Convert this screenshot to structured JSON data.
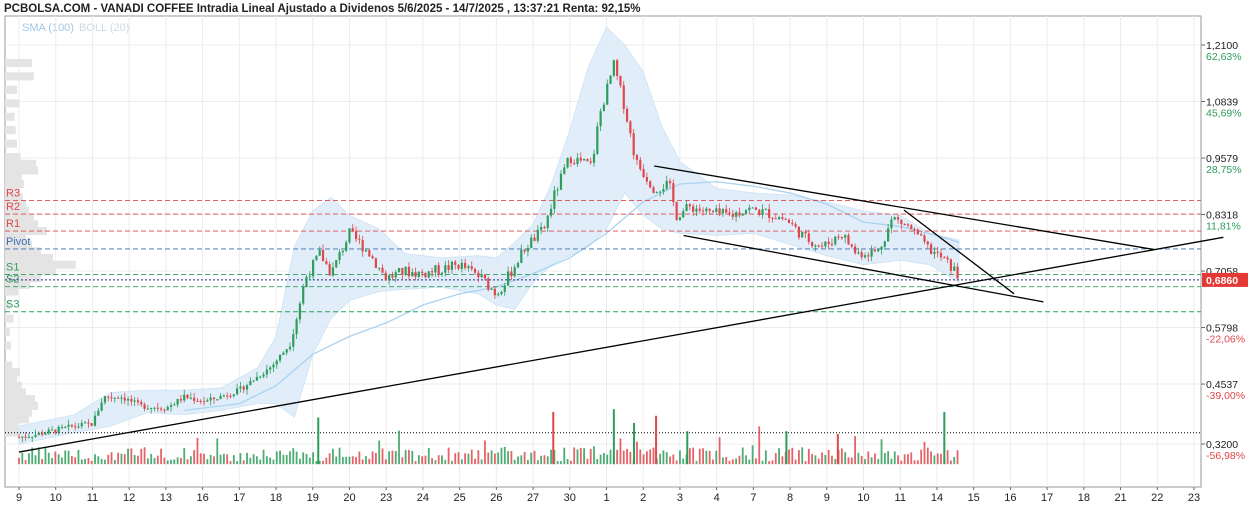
{
  "title": "PCBOLSA.COM - VANADI COFFEE Intradia Lineal Ajustado a Dividenos 5/6/2025 - 14/7/2025 , 13:37:21 Renta: 92,15%",
  "legend": {
    "sma": "SMA (100)",
    "boll": "BOLL (20)"
  },
  "colors": {
    "up": "#2e9d5c",
    "down": "#e0474c",
    "sma": "#a9d3f0",
    "boll_fill": "#dcecfa",
    "pivot": "#3a6fb0",
    "resistance": "#e0474c",
    "support": "#2e9d5c",
    "trendline": "#000000",
    "last_price_bg": "#e53935"
  },
  "chart_data": {
    "type": "candlestick",
    "y_range": [
      0.28,
      1.25
    ],
    "y_ticks": [
      {
        "value": 1.21,
        "label": "1,2100",
        "pct": "62,63%",
        "pct_color": "green"
      },
      {
        "value": 1.0839,
        "label": "1,0839",
        "pct": "45,69%",
        "pct_color": "green"
      },
      {
        "value": 0.9579,
        "label": "0,9579",
        "pct": "28,75%",
        "pct_color": "green"
      },
      {
        "value": 0.8318,
        "label": "0,8318",
        "pct": "11,81%",
        "pct_color": "green"
      },
      {
        "value": 0.7058,
        "label": "0,7058",
        "pct": "",
        "pct_color": "green"
      },
      {
        "value": 0.5798,
        "label": "0,5798",
        "pct": "-22,06%",
        "pct_color": "red"
      },
      {
        "value": 0.4537,
        "label": "0,4537",
        "pct": "-39,00%",
        "pct_color": "red"
      },
      {
        "value": 0.32,
        "label": "0,3200",
        "pct": "-56,98%",
        "pct_color": "red"
      }
    ],
    "last_price": {
      "value": 0.686,
      "label": "0,6860"
    },
    "levels": [
      {
        "name": "R3",
        "value": 0.863,
        "kind": "resistance"
      },
      {
        "name": "R2",
        "value": 0.833,
        "kind": "resistance"
      },
      {
        "name": "R1",
        "value": 0.795,
        "kind": "resistance"
      },
      {
        "name": "Pivot",
        "value": 0.755,
        "kind": "pivot"
      },
      {
        "name": "S1",
        "value": 0.698,
        "kind": "support"
      },
      {
        "name": "S2",
        "value": 0.671,
        "kind": "support"
      },
      {
        "name": "S3",
        "value": 0.615,
        "kind": "support"
      }
    ],
    "x_labels": [
      "9",
      "10",
      "11",
      "12",
      "13",
      "16",
      "17",
      "18",
      "19",
      "20",
      "23",
      "24",
      "25",
      "26",
      "27",
      "30",
      "1",
      "2",
      "3",
      "4",
      "7",
      "8",
      "9",
      "10",
      "11",
      "14",
      "15",
      "16",
      "17",
      "18",
      "21",
      "22",
      "23"
    ],
    "anchors": [
      [
        0,
        0.335
      ],
      [
        0.7,
        0.345
      ],
      [
        1.5,
        0.36
      ],
      [
        2.0,
        0.365
      ],
      [
        2.3,
        0.425
      ],
      [
        2.8,
        0.425
      ],
      [
        3.3,
        0.405
      ],
      [
        4.0,
        0.4
      ],
      [
        4.5,
        0.425
      ],
      [
        5.1,
        0.415
      ],
      [
        6.0,
        0.44
      ],
      [
        6.9,
        0.495
      ],
      [
        7.4,
        0.545
      ],
      [
        7.8,
        0.69
      ],
      [
        8.2,
        0.745
      ],
      [
        8.5,
        0.7
      ],
      [
        9.0,
        0.79
      ],
      [
        9.5,
        0.75
      ],
      [
        10.0,
        0.69
      ],
      [
        10.5,
        0.705
      ],
      [
        11.0,
        0.7
      ],
      [
        11.5,
        0.71
      ],
      [
        12.0,
        0.72
      ],
      [
        12.6,
        0.69
      ],
      [
        13.0,
        0.655
      ],
      [
        13.3,
        0.69
      ],
      [
        13.8,
        0.76
      ],
      [
        14.3,
        0.8
      ],
      [
        14.6,
        0.88
      ],
      [
        15.0,
        0.96
      ],
      [
        15.6,
        0.94
      ],
      [
        15.8,
        1.05
      ],
      [
        16.2,
        1.165
      ],
      [
        16.5,
        1.07
      ],
      [
        16.8,
        0.95
      ],
      [
        17.3,
        0.89
      ],
      [
        17.7,
        0.9
      ],
      [
        17.9,
        0.83
      ],
      [
        18.3,
        0.85
      ],
      [
        18.8,
        0.835
      ],
      [
        19.4,
        0.83
      ],
      [
        19.8,
        0.845
      ],
      [
        20.4,
        0.835
      ],
      [
        20.9,
        0.82
      ],
      [
        21.4,
        0.78
      ],
      [
        21.9,
        0.76
      ],
      [
        22.4,
        0.79
      ],
      [
        22.8,
        0.745
      ],
      [
        23.4,
        0.75
      ],
      [
        23.8,
        0.825
      ],
      [
        24.3,
        0.8
      ],
      [
        24.7,
        0.76
      ],
      [
        25.2,
        0.73
      ],
      [
        25.5,
        0.705
      ],
      [
        25.6,
        0.686
      ]
    ],
    "sma100": [
      [
        4.5,
        0.395
      ],
      [
        6.0,
        0.41
      ],
      [
        7.0,
        0.45
      ],
      [
        8.0,
        0.52
      ],
      [
        9.0,
        0.56
      ],
      [
        10.0,
        0.59
      ],
      [
        11.0,
        0.63
      ],
      [
        12.0,
        0.655
      ],
      [
        13.0,
        0.67
      ],
      [
        14.0,
        0.7
      ],
      [
        15.0,
        0.735
      ],
      [
        16.0,
        0.79
      ],
      [
        17.0,
        0.86
      ],
      [
        18.0,
        0.9
      ],
      [
        19.0,
        0.905
      ],
      [
        20.0,
        0.895
      ],
      [
        21.0,
        0.88
      ],
      [
        22.0,
        0.855
      ],
      [
        23.0,
        0.815
      ],
      [
        24.0,
        0.805
      ],
      [
        25.0,
        0.785
      ],
      [
        25.6,
        0.77
      ]
    ],
    "boll_band": [
      [
        0,
        0.32,
        0.36
      ],
      [
        1.5,
        0.345,
        0.385
      ],
      [
        2.5,
        0.36,
        0.435
      ],
      [
        3.5,
        0.39,
        0.44
      ],
      [
        4.5,
        0.385,
        0.44
      ],
      [
        5.5,
        0.395,
        0.445
      ],
      [
        6.5,
        0.41,
        0.49
      ],
      [
        7.0,
        0.41,
        0.56
      ],
      [
        7.5,
        0.38,
        0.76
      ],
      [
        8.0,
        0.52,
        0.84
      ],
      [
        8.5,
        0.6,
        0.87
      ],
      [
        9.0,
        0.64,
        0.83
      ],
      [
        9.8,
        0.66,
        0.8
      ],
      [
        10.5,
        0.665,
        0.745
      ],
      [
        11.5,
        0.67,
        0.735
      ],
      [
        12.5,
        0.655,
        0.74
      ],
      [
        13.0,
        0.63,
        0.735
      ],
      [
        13.5,
        0.62,
        0.77
      ],
      [
        14.0,
        0.68,
        0.81
      ],
      [
        14.5,
        0.72,
        0.9
      ],
      [
        15.0,
        0.74,
        1.02
      ],
      [
        15.5,
        0.76,
        1.16
      ],
      [
        16.0,
        0.8,
        1.25
      ],
      [
        16.5,
        0.88,
        1.21
      ],
      [
        17.0,
        0.83,
        1.15
      ],
      [
        17.5,
        0.8,
        1.03
      ],
      [
        18.0,
        0.79,
        0.95
      ],
      [
        19.0,
        0.785,
        0.89
      ],
      [
        20.0,
        0.79,
        0.88
      ],
      [
        21.0,
        0.765,
        0.875
      ],
      [
        22.0,
        0.74,
        0.86
      ],
      [
        23.0,
        0.72,
        0.84
      ],
      [
        24.0,
        0.73,
        0.83
      ],
      [
        24.8,
        0.72,
        0.79
      ],
      [
        25.6,
        0.68,
        0.775
      ]
    ],
    "trendlines": [
      {
        "from": [
          0,
          0.302
        ],
        "to": [
          32.8,
          0.781
        ]
      },
      {
        "from": [
          17.3,
          0.94
        ],
        "to": [
          30.9,
          0.754
        ]
      },
      {
        "from": [
          18.1,
          0.785
        ],
        "to": [
          27.9,
          0.637
        ]
      },
      {
        "from": [
          24.1,
          0.842
        ],
        "to": [
          27.1,
          0.655
        ]
      }
    ],
    "volume_baseline": 0.345,
    "volume_spikes": [
      {
        "x": 8.15,
        "h": 0.85
      },
      {
        "x": 14.55,
        "h": 0.95
      },
      {
        "x": 16.2,
        "h": 1.0
      },
      {
        "x": 16.75,
        "h": 0.75
      },
      {
        "x": 17.35,
        "h": 0.88
      },
      {
        "x": 18.2,
        "h": 0.6
      },
      {
        "x": 25.2,
        "h": 0.95
      },
      {
        "x": 22.3,
        "h": 0.55
      },
      {
        "x": 20.9,
        "h": 0.6
      }
    ]
  }
}
